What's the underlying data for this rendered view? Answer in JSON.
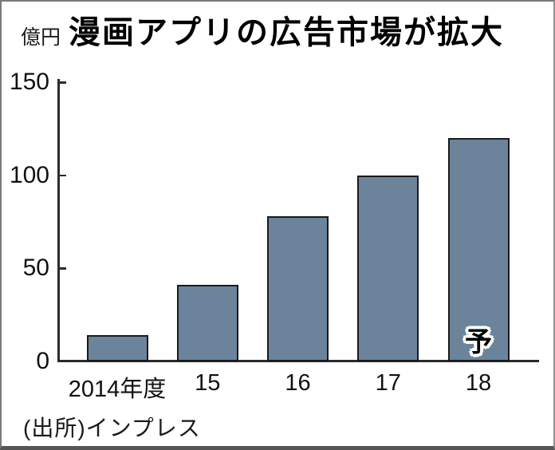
{
  "header": {
    "unit_label": "億円",
    "title": "漫画アプリの広告市場が拡大"
  },
  "chart_data": {
    "type": "bar",
    "title": "漫画アプリの広告市場が拡大",
    "ylabel": "億円",
    "xlabel": "",
    "categories": [
      "2014年度",
      "15",
      "16",
      "17",
      "18"
    ],
    "values": [
      14,
      41,
      78,
      100,
      120
    ],
    "ylim": [
      0,
      150
    ],
    "yticks": [
      0,
      50,
      100,
      150
    ],
    "grid": "off",
    "legend": "none",
    "forecast_label": "予",
    "forecast_index": 4,
    "bar_color": "#6b849c",
    "bar_border_color": "#1a1a1a",
    "axis_color": "#2b2b2b"
  },
  "footer": {
    "source": "(出所)インプレス"
  }
}
